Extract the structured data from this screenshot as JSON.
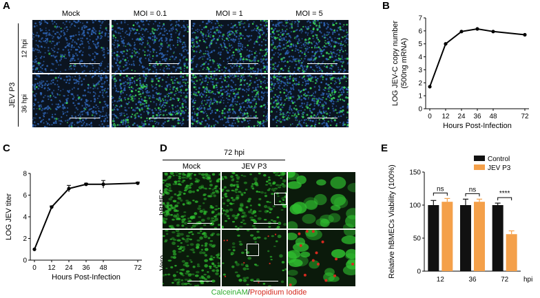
{
  "panels": {
    "A": {
      "letter": "A",
      "columns": [
        "Mock",
        "MOI = 0.1",
        "MOI = 1",
        "MOI = 5"
      ],
      "group_label": "JEV P3",
      "rows": [
        "12 hpi",
        "36 hpi"
      ],
      "image_density": [
        [
          0.05,
          0.25,
          0.45,
          0.6
        ],
        [
          0.08,
          0.75,
          0.6,
          0.75
        ]
      ],
      "colors": {
        "background": "#0b1420",
        "nuclei": "#2f66b8",
        "signal": "#39d35a",
        "scale_bar": "#ffffff"
      }
    },
    "B": {
      "letter": "B",
      "chart_data": {
        "type": "line",
        "xlabel": "Hours Post-Infection",
        "ylabel": "LOG JEV-C copy number\n(500ng mRNA)",
        "x": [
          0,
          12,
          24,
          36,
          48,
          72
        ],
        "values": [
          1.7,
          5.0,
          5.95,
          6.15,
          5.95,
          5.7
        ],
        "xticks": [
          "0",
          "12",
          "24",
          "36",
          "48",
          "72"
        ],
        "yticks": [
          "0",
          "1",
          "2",
          "3",
          "4",
          "5",
          "6",
          "7"
        ],
        "ylim": [
          0,
          7
        ],
        "grid": false
      }
    },
    "C": {
      "letter": "C",
      "chart_data": {
        "type": "line",
        "xlabel": "Hours Post-Infection",
        "ylabel": "LOG JEV titer",
        "x": [
          0,
          12,
          24,
          36,
          48,
          72
        ],
        "values": [
          1.0,
          4.9,
          6.6,
          7.0,
          7.0,
          7.1
        ],
        "error": [
          0,
          0.1,
          0.3,
          0.1,
          0.35,
          0.1
        ],
        "xticks": [
          "0",
          "12",
          "24",
          "36",
          "48",
          "72"
        ],
        "yticks": [
          "0",
          "2",
          "4",
          "6",
          "8"
        ],
        "ylim": [
          0,
          8
        ],
        "grid": false
      }
    },
    "D": {
      "letter": "D",
      "timepoint": "72 hpi",
      "columns": [
        "Mock",
        "JEV P3"
      ],
      "rows": [
        "hBMEC",
        "Vero"
      ],
      "stain_green": "CalceinAM",
      "stain_sep": "/",
      "stain_red": "Propidium Iodide",
      "colors": {
        "green": "#2fbf2f",
        "red": "#d42a1f",
        "background": "#0b1a0b"
      }
    },
    "E": {
      "letter": "E",
      "chart_data": {
        "type": "bar",
        "ylabel": "Relative hBMECs Viability (100%)",
        "categories": [
          "12",
          "36",
          "72"
        ],
        "x_unit": "hpi",
        "series": [
          {
            "name": "Control",
            "color": "#111111",
            "values": [
              100,
              100,
              100
            ],
            "error": [
              7,
              9,
              3
            ]
          },
          {
            "name": "JEV P3",
            "color": "#f4a04a",
            "values": [
              105,
              105,
              56
            ],
            "error": [
              5,
              4,
              5
            ]
          }
        ],
        "yticks": [
          "0",
          "50",
          "100",
          "150"
        ],
        "ylim": [
          0,
          150
        ],
        "significance": [
          "ns",
          "ns",
          "****"
        ],
        "legend": "top-right",
        "grid": false
      }
    }
  }
}
